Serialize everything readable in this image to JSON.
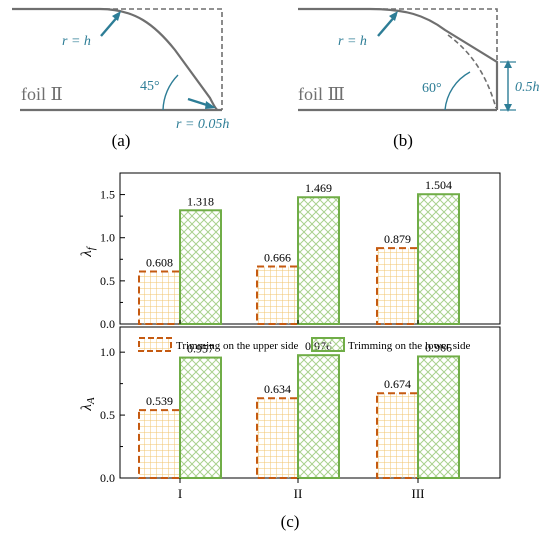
{
  "colors": {
    "foil_line": "#6f6f6f",
    "dash_line": "#6f6f6f",
    "annotation": "#2d7d96",
    "upper_stroke": "#c55a11",
    "upper_hatch": "#f2c46e",
    "lower_stroke": "#70ad47",
    "lower_hatch": "#a9d18e"
  },
  "panel_a": {
    "label": "(a)",
    "foil_name": "foil Ⅱ",
    "r_top": "r = h",
    "angle": "45°",
    "r_tip": "r = 0.05h"
  },
  "panel_b": {
    "label": "(b)",
    "foil_name": "foil Ⅲ",
    "r_top": "r = h",
    "angle": "60°",
    "height": "0.5h"
  },
  "panel_c_label": "(c)",
  "legend": {
    "upper": "Trimming on the upper side",
    "lower": "Trimming on the lower side"
  },
  "chart_data": [
    {
      "type": "bar",
      "ylabel": "λf",
      "ylim": [
        0,
        1.75
      ],
      "yticks": [
        "0.0",
        "0.5",
        "1.0",
        "1.5"
      ],
      "categories": [
        "I",
        "II",
        "III"
      ],
      "series": [
        {
          "name": "Trimming on the upper side",
          "values": [
            0.608,
            0.666,
            0.879
          ],
          "labels": [
            "0.608",
            "0.666",
            "0.879"
          ]
        },
        {
          "name": "Trimming on the lower side",
          "values": [
            1.318,
            1.469,
            1.504
          ],
          "labels": [
            "1.318",
            "1.469",
            "1.504"
          ]
        }
      ]
    },
    {
      "type": "bar",
      "ylabel": "λA",
      "ylim": [
        0,
        1.2
      ],
      "yticks": [
        "0.0",
        "0.5",
        "1.0"
      ],
      "categories": [
        "I",
        "II",
        "III"
      ],
      "series": [
        {
          "name": "Trimming on the upper side",
          "values": [
            0.539,
            0.634,
            0.674
          ],
          "labels": [
            "0.539",
            "0.634",
            "0.674"
          ]
        },
        {
          "name": "Trimming on the lower side",
          "values": [
            0.957,
            0.976,
            0.966
          ],
          "labels": [
            "0.957",
            "0.976",
            "0.966"
          ]
        }
      ]
    }
  ]
}
